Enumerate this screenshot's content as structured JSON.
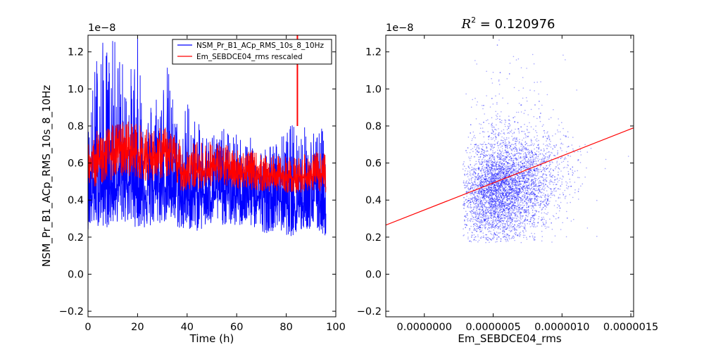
{
  "chart_data": [
    {
      "type": "line",
      "xlabel": "Time (h)",
      "ylabel": "NSM_Pr_B1_ACp_RMS_10s_8_10Hz",
      "offset_text": "1e−8",
      "xlim": [
        0,
        100
      ],
      "ylim": [
        -0.23,
        1.29
      ],
      "x_ticks": [
        0,
        20,
        40,
        60,
        80,
        100
      ],
      "x_tick_labels": [
        "0",
        "20",
        "40",
        "60",
        "80",
        "100"
      ],
      "y_ticks": [
        -0.2,
        0.0,
        0.2,
        0.4,
        0.6,
        0.8,
        1.0,
        1.2
      ],
      "y_tick_labels": [
        "−0.2",
        "0.0",
        "0.2",
        "0.4",
        "0.6",
        "0.8",
        "1.0",
        "1.2"
      ],
      "legend_position": "top-right",
      "series": [
        {
          "name": "NSM_Pr_B1_ACp_RMS_10s_8_10Hz",
          "color": "#0000ff",
          "x": [
            0,
            4,
            8,
            12,
            16,
            20,
            24,
            28,
            32,
            36,
            38,
            40,
            44,
            48,
            52,
            56,
            60,
            64,
            68,
            72,
            76,
            80,
            84,
            88,
            92,
            96
          ],
          "low": [
            0.24,
            0.26,
            0.25,
            0.28,
            0.27,
            0.25,
            0.24,
            0.26,
            0.28,
            0.25,
            0.22,
            0.24,
            0.23,
            0.24,
            0.27,
            0.26,
            0.25,
            0.26,
            0.24,
            0.22,
            0.24,
            0.21,
            0.2,
            0.24,
            0.23,
            0.2
          ],
          "center": [
            0.42,
            0.45,
            0.46,
            0.48,
            0.5,
            0.47,
            0.45,
            0.46,
            0.48,
            0.44,
            0.4,
            0.4,
            0.42,
            0.44,
            0.45,
            0.44,
            0.42,
            0.43,
            0.42,
            0.4,
            0.41,
            0.39,
            0.38,
            0.4,
            0.41,
            0.4
          ],
          "high": [
            0.82,
            1.29,
            1.25,
            1.29,
            1.05,
            1.29,
            0.92,
            1.05,
            1.15,
            0.85,
            0.78,
            1.0,
            0.82,
            0.78,
            0.8,
            0.78,
            0.76,
            0.75,
            0.72,
            0.7,
            0.72,
            0.78,
            0.85,
            0.8,
            0.78,
            0.8
          ]
        },
        {
          "name": "Em_SEBDCE04_rms rescaled",
          "color": "#ff0000",
          "x": [
            0,
            4,
            8,
            12,
            16,
            20,
            24,
            28,
            32,
            36,
            38,
            40,
            44,
            48,
            52,
            56,
            60,
            64,
            68,
            72,
            76,
            80,
            84,
            88,
            92,
            96
          ],
          "low": [
            0.45,
            0.48,
            0.5,
            0.52,
            0.53,
            0.52,
            0.5,
            0.51,
            0.52,
            0.48,
            0.44,
            0.45,
            0.46,
            0.47,
            0.48,
            0.47,
            0.46,
            0.46,
            0.45,
            0.44,
            0.45,
            0.44,
            0.43,
            0.45,
            0.45,
            0.44
          ],
          "center": [
            0.58,
            0.62,
            0.64,
            0.66,
            0.67,
            0.65,
            0.63,
            0.64,
            0.65,
            0.6,
            0.55,
            0.56,
            0.56,
            0.57,
            0.58,
            0.57,
            0.55,
            0.55,
            0.54,
            0.53,
            0.53,
            0.52,
            0.52,
            0.53,
            0.53,
            0.52
          ],
          "high": [
            0.72,
            0.78,
            0.8,
            0.82,
            0.84,
            0.82,
            0.78,
            0.79,
            0.8,
            0.75,
            0.7,
            0.7,
            0.72,
            0.72,
            0.72,
            0.7,
            0.68,
            0.68,
            0.66,
            0.64,
            0.64,
            0.64,
            0.64,
            0.65,
            0.66,
            0.66
          ]
        }
      ],
      "annotations": [
        {
          "x": 84.5,
          "ymin": 0.8,
          "ymax": 1.29,
          "color": "#ff0000"
        }
      ]
    },
    {
      "type": "scatter",
      "title_prefix": "R",
      "title_superscript": "2",
      "title_value": " = 0.120976",
      "xlabel": "Em_SEBDCE04_rms",
      "offset_text": "1e−8",
      "xlim": [
        -2.8e-07,
        1.52e-06
      ],
      "ylim": [
        -0.23,
        1.29
      ],
      "x_ticks": [
        0,
        5e-07,
        1e-06,
        1.5e-06
      ],
      "x_tick_labels": [
        "0.0000000",
        "0.0000005",
        "0.0000010",
        "0.0000015"
      ],
      "y_ticks": [
        -0.2,
        0.0,
        0.2,
        0.4,
        0.6,
        0.8,
        1.0,
        1.2
      ],
      "y_tick_labels": [
        "−0.2",
        "0.0",
        "0.2",
        "0.4",
        "0.6",
        "0.8",
        "1.0",
        "1.2"
      ],
      "point_color": "#0000ff",
      "point_cloud": {
        "x_center": 4.8e-07,
        "x_spread": 1.8e-07,
        "x_min": 2.8e-07,
        "x_max": 1.52e-06,
        "y_center": 0.45,
        "y_spread": 0.13,
        "y_min": 0.17,
        "y_max": 1.29
      },
      "fit_line": {
        "color": "#ff0000",
        "x": [
          -2.8e-07,
          1.52e-06
        ],
        "y": [
          0.265,
          0.79
        ]
      }
    }
  ]
}
